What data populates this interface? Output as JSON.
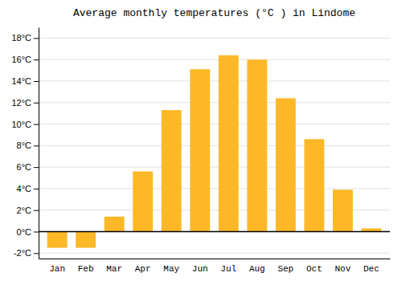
{
  "chart_data": {
    "type": "bar",
    "title": "Average monthly temperatures (°C ) in Lindome",
    "categories": [
      "Jan",
      "Feb",
      "Mar",
      "Apr",
      "May",
      "Jun",
      "Jul",
      "Aug",
      "Sep",
      "Oct",
      "Nov",
      "Dec"
    ],
    "values": [
      -1.5,
      -1.5,
      1.4,
      5.6,
      11.3,
      15.1,
      16.4,
      16.0,
      12.4,
      8.6,
      3.9,
      0.3
    ],
    "color": "#FDB827",
    "ylim": [
      -2.5,
      19.0
    ],
    "yticks": [
      {
        "value": -2,
        "label": "-2°C"
      },
      {
        "value": 0,
        "label": "0°C"
      },
      {
        "value": 2,
        "label": "2°C"
      },
      {
        "value": 4,
        "label": "4°C"
      },
      {
        "value": 6,
        "label": "6°C"
      },
      {
        "value": 8,
        "label": "8°C"
      },
      {
        "value": 10,
        "label": "10°C"
      },
      {
        "value": 12,
        "label": "12°C"
      },
      {
        "value": 14,
        "label": "14°C"
      },
      {
        "value": 16,
        "label": "16°C"
      },
      {
        "value": 18,
        "label": "18°C"
      }
    ],
    "grid": true
  }
}
